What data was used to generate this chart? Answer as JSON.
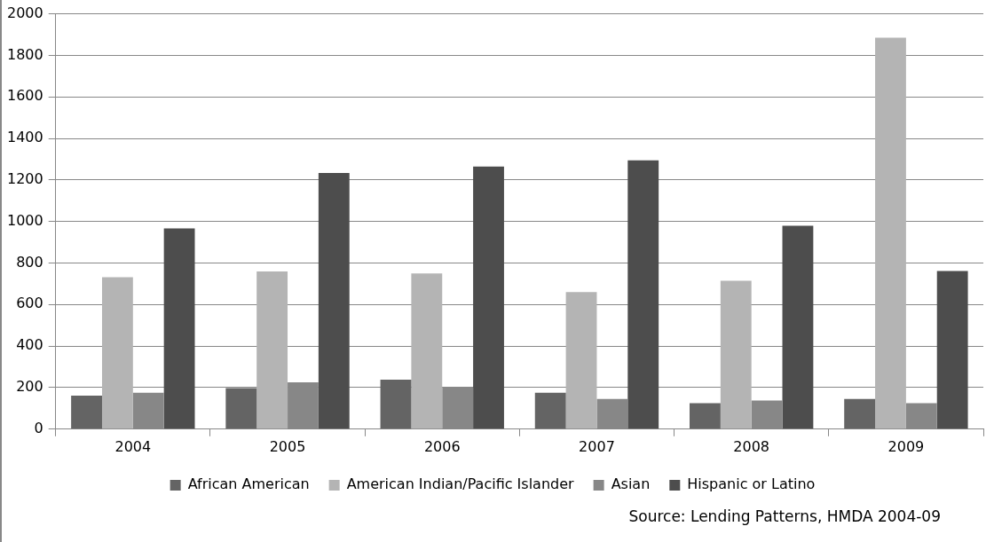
{
  "chart_data": {
    "type": "bar",
    "categories": [
      "2004",
      "2005",
      "2006",
      "2007",
      "2008",
      "2009"
    ],
    "series": [
      {
        "name": "African American",
        "color": "#646464",
        "values": [
          162,
          198,
          238,
          175,
          125,
          145
        ]
      },
      {
        "name": "American Indian/Pacific Islander",
        "color": "#b4b4b4",
        "values": [
          732,
          760,
          750,
          660,
          715,
          1885
        ]
      },
      {
        "name": "Asian",
        "color": "#878787",
        "values": [
          175,
          226,
          200,
          145,
          138,
          125
        ]
      },
      {
        "name": "Hispanic or Latino",
        "color": "#4d4d4d",
        "values": [
          967,
          1234,
          1265,
          1295,
          980,
          762
        ]
      }
    ],
    "ylim": [
      0,
      2000
    ],
    "yticks": [
      0,
      200,
      400,
      600,
      800,
      1000,
      1200,
      1400,
      1600,
      1800,
      2000
    ],
    "grid": "y",
    "legend": "bottom",
    "annotations": [
      "Source: Lending Patterns, HMDA 2004-09"
    ]
  }
}
